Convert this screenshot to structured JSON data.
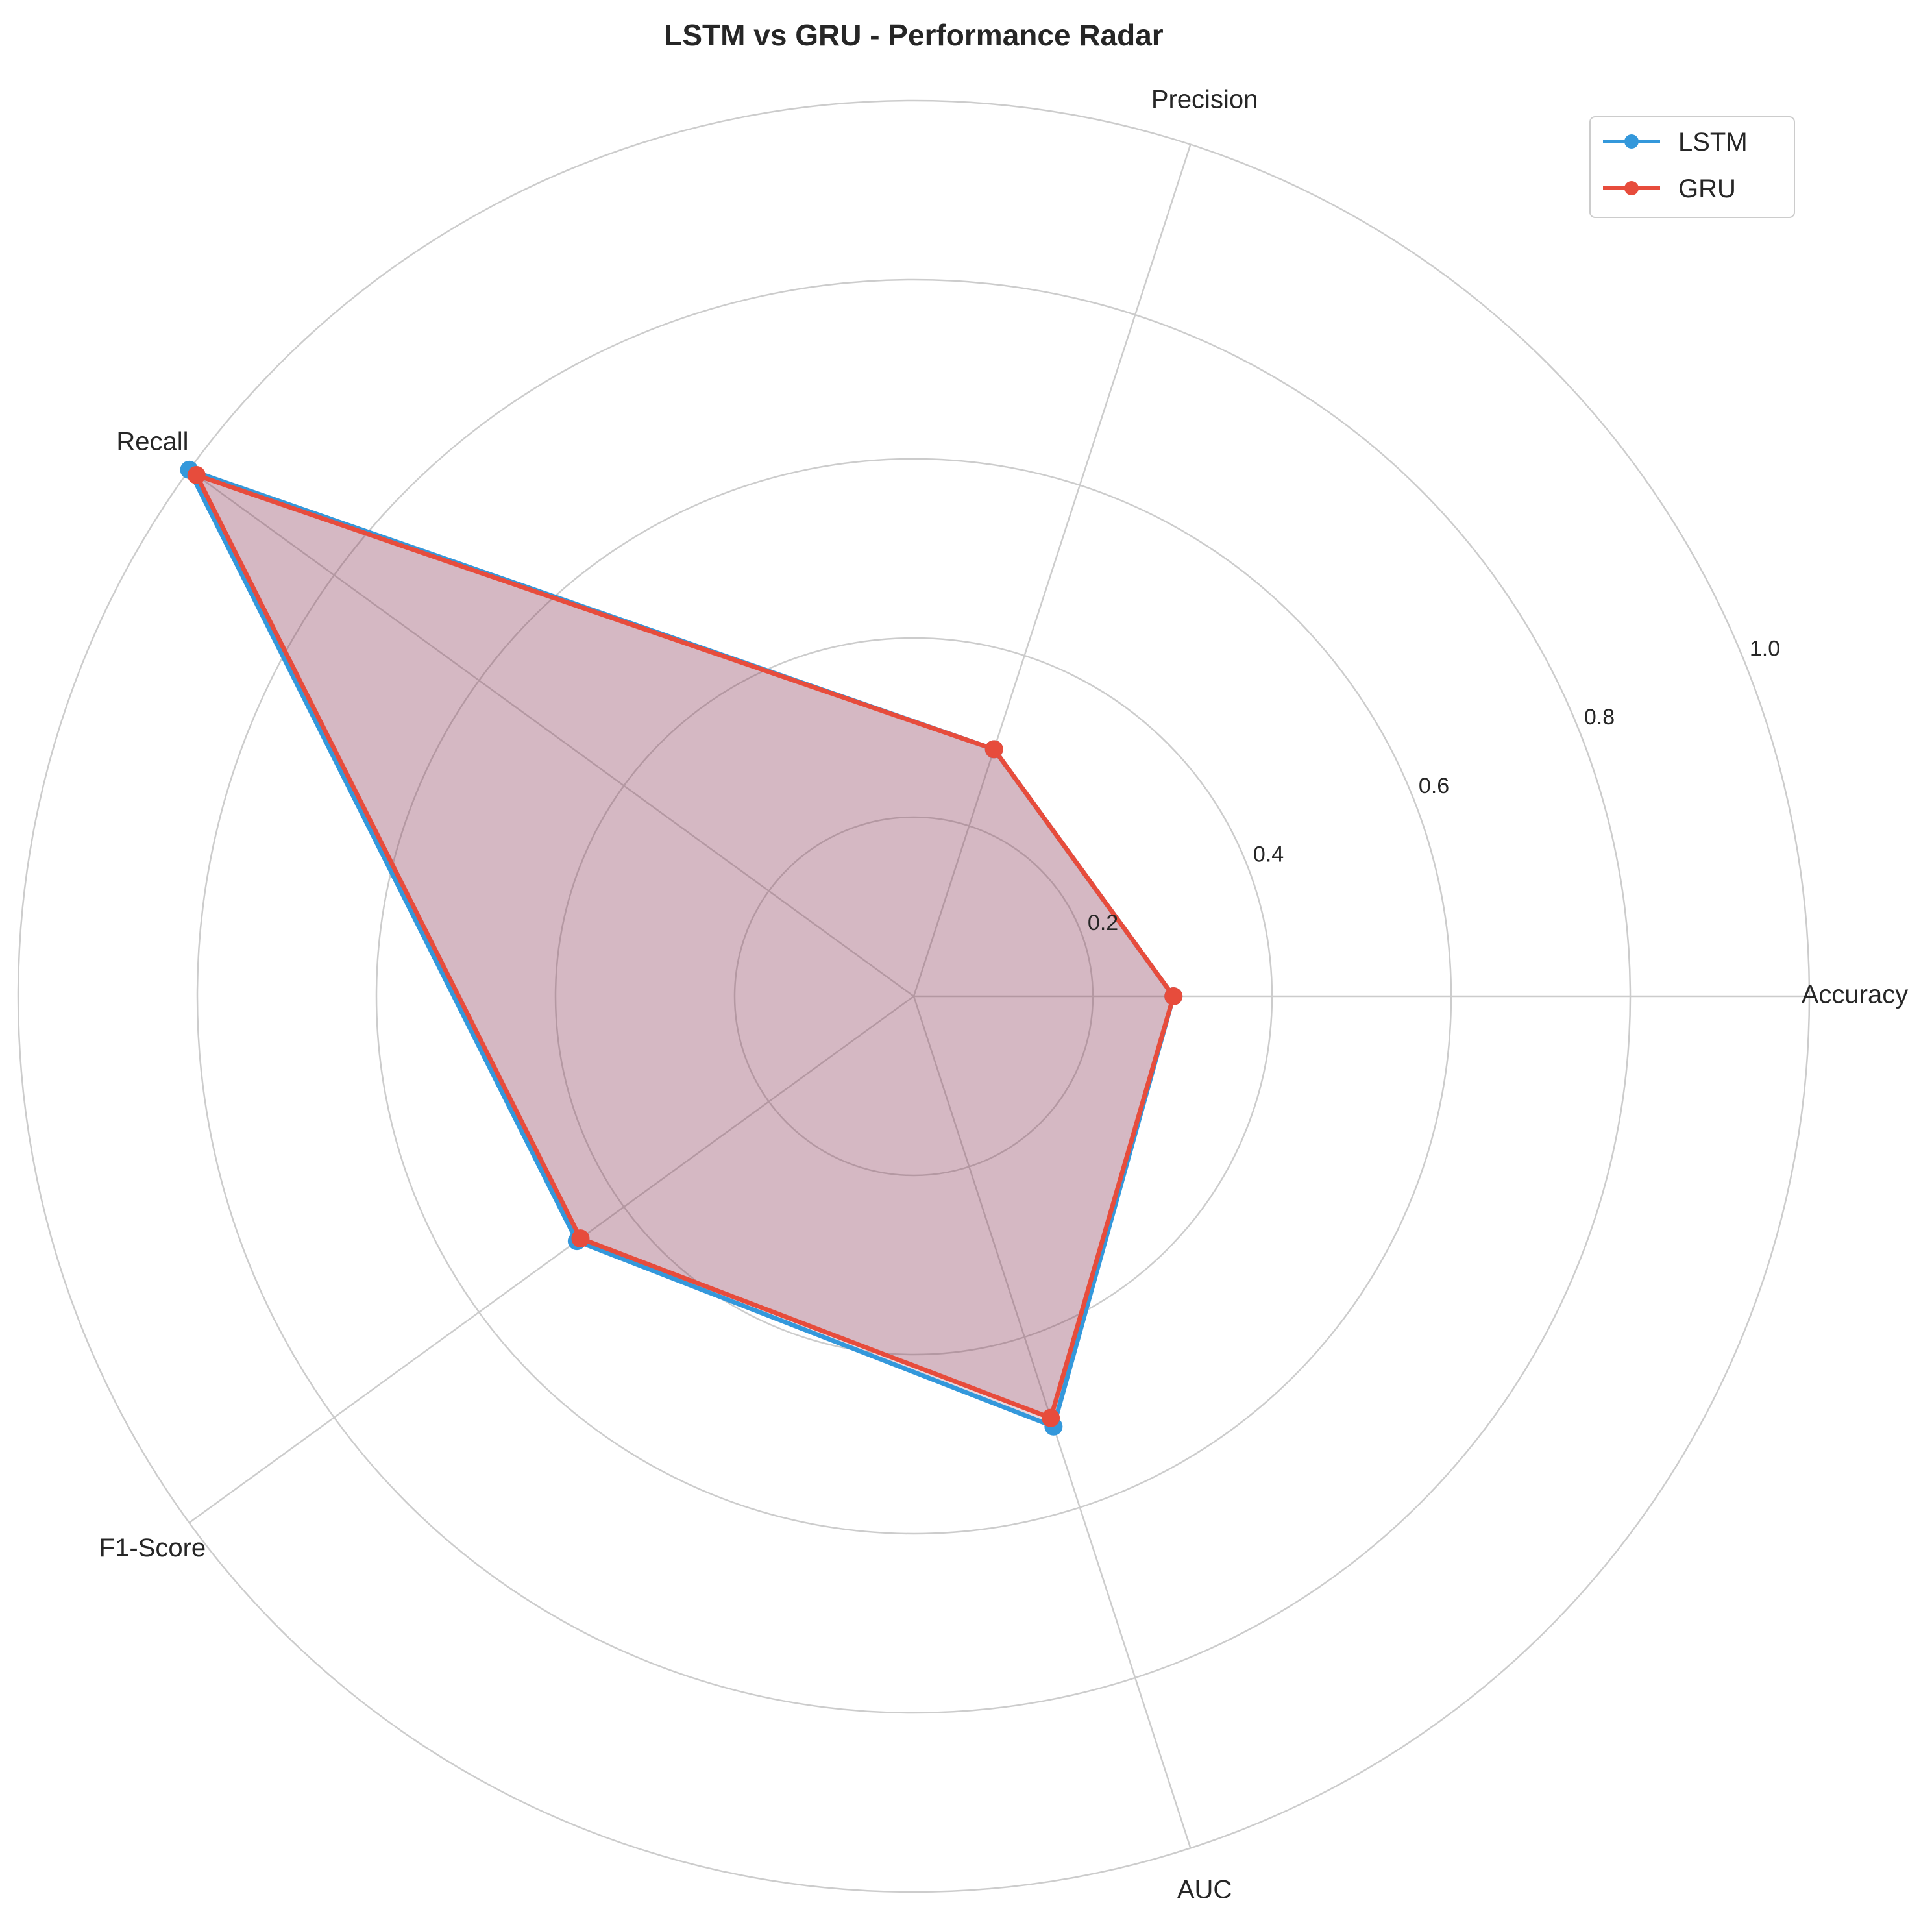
{
  "chart_data": {
    "type": "radar",
    "title": "LSTM vs GRU - Performance Radar",
    "axes": [
      "Accuracy",
      "Precision",
      "Recall",
      "F1-Score",
      "AUC"
    ],
    "r_ticks": [
      "0.2",
      "0.4",
      "0.6",
      "0.8",
      "1.0"
    ],
    "r_tick_values": [
      0.2,
      0.4,
      0.6,
      0.8,
      1.0
    ],
    "rlim": [
      0,
      1.0
    ],
    "grid": true,
    "legend_position": "top-right",
    "series": [
      {
        "name": "LSTM",
        "color": "#3498db",
        "values": [
          0.29,
          0.29,
          1.0,
          0.465,
          0.505
        ]
      },
      {
        "name": "GRU",
        "color": "#e74c3c",
        "values": [
          0.29,
          0.29,
          0.99,
          0.46,
          0.495
        ]
      }
    ],
    "fill_color": "#8b3a5a"
  }
}
